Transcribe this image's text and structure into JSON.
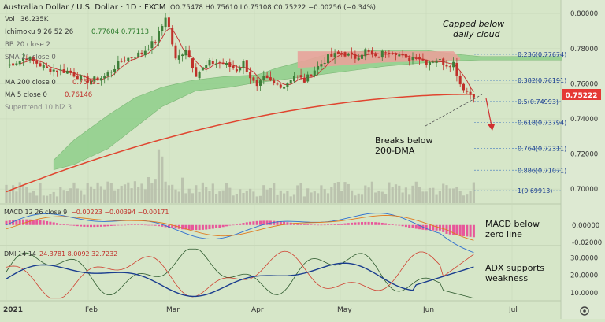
{
  "colors": {
    "background": "#d6e6c8",
    "axis_bg": "#dde9d2",
    "up": "#3f7f3a",
    "down": "#c0302a",
    "cloud_fill": "#8fcf8a",
    "cloud_red": "#e8a29a",
    "ma200": "#e0452f",
    "ma5": "#c43030",
    "volume": "#b6bca9",
    "macd_line": "#2f6fd0",
    "signal_line": "#e07a1f",
    "hist": "#e8569a",
    "adx": "#1a3d8f",
    "di_plus": "#2e5a2e",
    "di_minus": "#d04030",
    "price_badge": "#e53935"
  },
  "header": {
    "symbol": "Australian Dollar / U.S. Dollar · 1D · FXCM",
    "ohlc": "O0.75478  H0.75610  L0.75108  C0.75222  −0.00256 (−0.34%)",
    "indicators": [
      {
        "name": "Vol",
        "values": "36.235K"
      },
      {
        "name": "Ichimoku 9 26 52 26",
        "values": "0.77604  0.77113"
      },
      {
        "name": "BB 20 close 2",
        "values": ""
      },
      {
        "name": "SMA 21 close 0",
        "values": ""
      },
      {
        "name": "MA 200 close 0",
        "values": "0.75491"
      },
      {
        "name": "MA 5 close 0",
        "values": "0.76146"
      },
      {
        "name": "Supertrend 10 hl2 3",
        "values": ""
      }
    ]
  },
  "annotations": {
    "cloud_note": [
      "Capped below",
      "daily cloud"
    ],
    "dma_note": [
      "Breaks below",
      "200-DMA"
    ],
    "macd_note": [
      "MACD below",
      "zero line"
    ],
    "adx_note": [
      "ADX supports",
      "weakness"
    ]
  },
  "chart_data": {
    "type": "candlestick",
    "x_labels": [
      "2021",
      "Feb",
      "Mar",
      "Apr",
      "May",
      "Jun",
      "Jul"
    ],
    "price_axis": [
      "0.80000",
      "0.78000",
      "0.76000",
      "0.74000",
      "0.72000",
      "0.70000"
    ],
    "current_price": "0.75222",
    "ylim": [
      0.692,
      0.805
    ],
    "fib_levels": [
      {
        "label": "0.236(0.77674)",
        "value": 0.77674
      },
      {
        "label": "0.382(0.76191)",
        "value": 0.76191
      },
      {
        "label": "0.5(0.74993)",
        "value": 0.74993
      },
      {
        "label": "0.618(0.73794)",
        "value": 0.73794
      },
      {
        "label": "0.764(0.72311)",
        "value": 0.72311
      },
      {
        "label": "0.886(0.71071)",
        "value": 0.71071
      },
      {
        "label": "1(0.69913)",
        "value": 0.69913
      }
    ],
    "macd": {
      "label": "MACD 12 26 close 9",
      "values": "−0.00223  −0.00394  −0.00171",
      "axis": [
        "0.00000",
        "-0.02000"
      ],
      "ylim": [
        -0.0085,
        0.008
      ]
    },
    "dmi": {
      "label": "DMI 14 14",
      "values": "24.3781  8.0092  32.7232",
      "axis": [
        "30.0000",
        "20.0000",
        "10.0000"
      ],
      "ylim": [
        6,
        36
      ]
    }
  }
}
